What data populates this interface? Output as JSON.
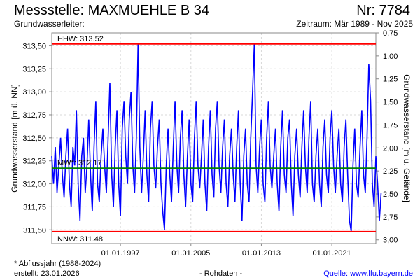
{
  "header": {
    "title": "Messstelle: MAXMUEHLE B 34",
    "nr": "Nr: 7784",
    "aquifer": "Grundwasserleiter:",
    "period": "Zeitraum: Mär 1989 - Nov 2025"
  },
  "footer": {
    "note": "* Abflussjahr (1988-2024)",
    "created": "erstellt:  23.01.2026",
    "raw": "- Rohdaten -",
    "source": "Quelle: www.lfu.bayern.de"
  },
  "colors": {
    "series": "#0000ff",
    "extreme": "#ff0000",
    "mean": "#008000",
    "grid": "#d8d8d8"
  },
  "chart_data": {
    "type": "line",
    "ylabel": "Grundwasserstand [m ü. NN]",
    "ylabel_right": "Grundwasserstand [m u. Gelände]",
    "ylim": [
      311.35,
      313.64
    ],
    "yticks": [
      "311,50",
      "311,75",
      "312,00",
      "312,25",
      "312,50",
      "312,75",
      "313,00",
      "313,25",
      "313,50"
    ],
    "ytick_values": [
      311.5,
      311.75,
      312.0,
      312.25,
      312.5,
      312.75,
      313.0,
      313.25,
      313.5
    ],
    "yticks_right": [
      "0,75",
      "1,00",
      "1,25",
      "1,50",
      "1,75",
      "2,00",
      "2,25",
      "2,50",
      "2,75",
      "3,00"
    ],
    "yticks_right_values": [
      0.75,
      1.0,
      1.25,
      1.5,
      1.75,
      2.0,
      2.25,
      2.5,
      2.75,
      3.0
    ],
    "ground_level": 314.39,
    "xlim": [
      1989.2,
      2026.0
    ],
    "xticks": [
      "01.01.1997",
      "01.01.2005",
      "01.01.2013",
      "01.01.2021"
    ],
    "xtick_values": [
      1997,
      2005,
      2013,
      2021
    ],
    "reference_lines": [
      {
        "label": "HHW: 313.52",
        "value": 313.52,
        "color": "#ff0000"
      },
      {
        "label": "MW*: 312.17",
        "value": 312.17,
        "color": "#008000"
      },
      {
        "label": "NNW: 311.48",
        "value": 311.48,
        "color": "#ff0000"
      }
    ],
    "series": [
      {
        "name": "Grundwasserstand",
        "x_start": 1989.2,
        "x_step": 0.2,
        "values": [
          312.3,
          312.0,
          312.4,
          311.9,
          312.2,
          312.5,
          312.1,
          311.85,
          312.3,
          312.6,
          312.0,
          311.75,
          312.4,
          312.2,
          312.8,
          312.0,
          311.6,
          312.3,
          312.5,
          311.9,
          312.2,
          312.7,
          312.1,
          311.7,
          312.4,
          312.9,
          312.0,
          311.8,
          312.3,
          312.6,
          312.2,
          311.9,
          312.5,
          313.1,
          312.1,
          311.75,
          312.4,
          312.8,
          312.0,
          311.65,
          312.6,
          312.9,
          312.3,
          312.0,
          312.7,
          313.0,
          312.2,
          311.9,
          312.5,
          313.52,
          312.4,
          311.9,
          312.3,
          312.8,
          312.1,
          311.8,
          312.6,
          312.9,
          312.2,
          311.95,
          312.4,
          312.7,
          312.0,
          311.7,
          311.5,
          312.2,
          312.6,
          312.1,
          311.8,
          312.4,
          312.9,
          312.2,
          311.9,
          312.5,
          312.8,
          312.1,
          311.75,
          312.3,
          312.7,
          312.0,
          311.8,
          312.5,
          312.9,
          312.2,
          311.95,
          312.3,
          312.7,
          312.0,
          311.7,
          312.4,
          312.8,
          312.1,
          311.85,
          312.6,
          312.9,
          312.2,
          311.9,
          312.4,
          312.7,
          312.0,
          311.75,
          312.3,
          312.6,
          312.1,
          311.8,
          312.4,
          312.8,
          312.0,
          311.6,
          312.3,
          312.6,
          312.0,
          311.8,
          312.5,
          313.0,
          313.52,
          312.2,
          311.9,
          312.4,
          312.7,
          312.0,
          311.8,
          312.5,
          312.9,
          312.2,
          311.95,
          312.3,
          312.6,
          312.0,
          311.7,
          312.4,
          312.8,
          312.1,
          311.9,
          312.5,
          312.7,
          312.0,
          311.65,
          312.3,
          312.6,
          312.1,
          311.85,
          312.4,
          312.8,
          312.2,
          311.9,
          312.5,
          312.9,
          312.0,
          311.8,
          312.3,
          312.6,
          312.0,
          311.75,
          312.4,
          312.7,
          312.1,
          311.9,
          312.5,
          312.8,
          312.2,
          311.9,
          312.3,
          312.6,
          312.0,
          311.8,
          312.4,
          312.7,
          312.1,
          311.6,
          311.48,
          312.2,
          312.6,
          312.0,
          311.85,
          312.4,
          312.8,
          312.1,
          311.9,
          312.5,
          313.3,
          312.9,
          312.0,
          311.75,
          312.3,
          312.0,
          311.6,
          311.9
        ]
      }
    ]
  }
}
